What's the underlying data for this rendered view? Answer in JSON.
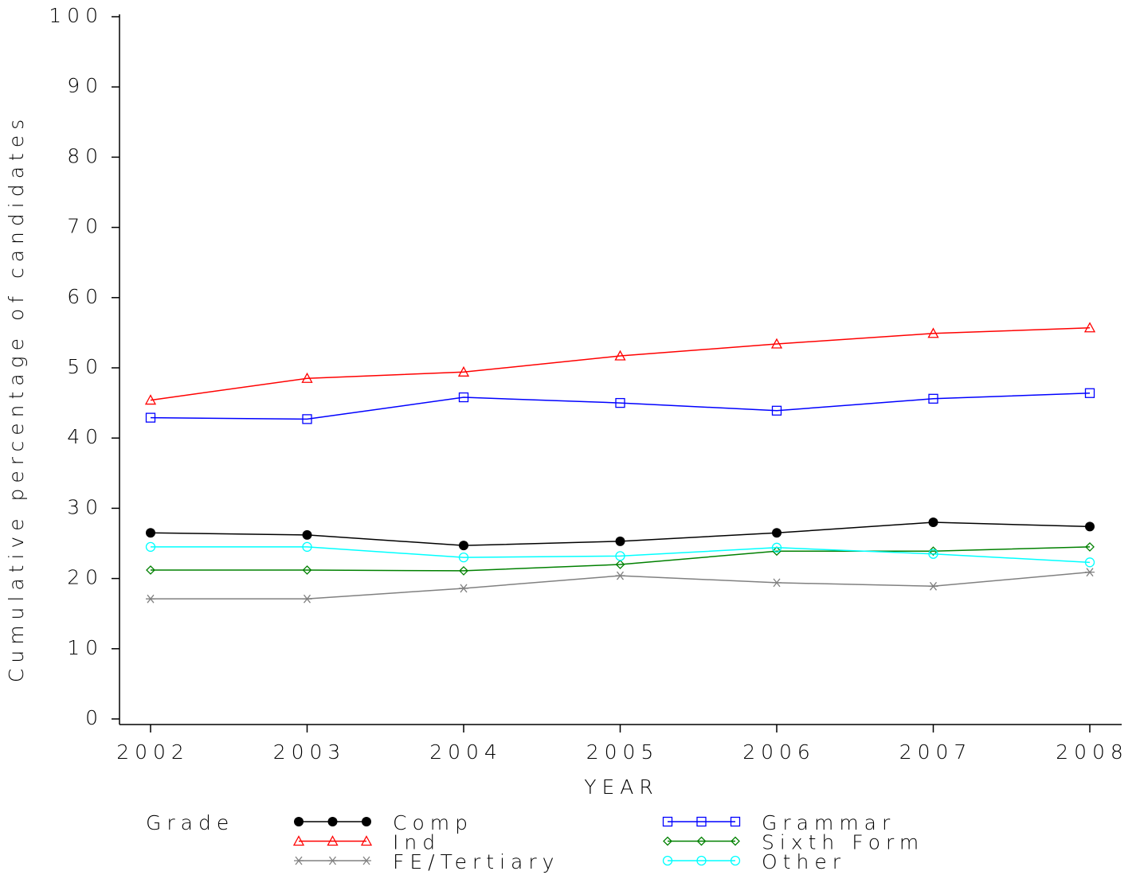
{
  "chart_data": {
    "type": "line",
    "x_label": "YEAR",
    "y_label": "Cumulative percentage of candidates",
    "legend_title": "Grade",
    "categories": [
      "2002",
      "2003",
      "2004",
      "2005",
      "2006",
      "2007",
      "2008"
    ],
    "ylim": [
      0,
      100
    ],
    "yticks": [
      0,
      10,
      20,
      30,
      40,
      50,
      60,
      70,
      80,
      90,
      100
    ],
    "series": [
      {
        "name": "Comp",
        "color": "#000000",
        "marker": "dot",
        "values": [
          26.5,
          26.2,
          24.7,
          25.3,
          26.5,
          28.0,
          27.4
        ]
      },
      {
        "name": "Ind",
        "color": "#ff0000",
        "marker": "triangle",
        "values": [
          45.4,
          48.5,
          49.4,
          51.7,
          53.4,
          54.9,
          55.7
        ]
      },
      {
        "name": "FE/Tertiary",
        "color": "#808080",
        "marker": "star",
        "values": [
          17.1,
          17.1,
          18.6,
          20.4,
          19.4,
          18.9,
          20.9
        ]
      },
      {
        "name": "Grammar",
        "color": "#0000ff",
        "marker": "square",
        "values": [
          42.9,
          42.7,
          45.8,
          45.0,
          43.9,
          45.6,
          46.4
        ]
      },
      {
        "name": "Sixth Form",
        "color": "#008000",
        "marker": "diamond",
        "values": [
          21.2,
          21.2,
          21.1,
          22.0,
          23.9,
          23.9,
          24.5
        ]
      },
      {
        "name": "Other",
        "color": "#00ffff",
        "marker": "circle",
        "values": [
          24.5,
          24.5,
          23.0,
          23.2,
          24.4,
          23.5,
          22.3
        ]
      }
    ]
  }
}
